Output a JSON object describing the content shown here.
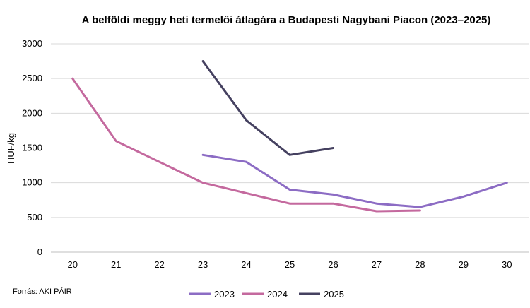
{
  "chart_data": {
    "type": "line",
    "title": "A belföldi meggy heti termelői átlagára a Budapesti Nagybani Piacon (2023–2025)",
    "xlabel": "",
    "ylabel": "HUF/kg",
    "x": [
      20,
      21,
      22,
      23,
      24,
      25,
      26,
      27,
      28,
      29,
      30
    ],
    "ylim": [
      0,
      3000
    ],
    "yticks": [
      0,
      500,
      1000,
      1500,
      2000,
      2500,
      3000
    ],
    "grid": true,
    "legend_position": "bottom",
    "series": [
      {
        "name": "2023",
        "color": "#8c6cc4",
        "points": [
          [
            23,
            1400
          ],
          [
            24,
            1300
          ],
          [
            25,
            900
          ],
          [
            26,
            830
          ],
          [
            27,
            700
          ],
          [
            28,
            650
          ],
          [
            29,
            800
          ],
          [
            30,
            1000
          ]
        ]
      },
      {
        "name": "2024",
        "color": "#c4699e",
        "points": [
          [
            20,
            2500
          ],
          [
            21,
            1600
          ],
          [
            22,
            1300
          ],
          [
            23,
            1000
          ],
          [
            24,
            850
          ],
          [
            25,
            700
          ],
          [
            26,
            700
          ],
          [
            27,
            590
          ],
          [
            28,
            600
          ]
        ]
      },
      {
        "name": "2025",
        "color": "#454160",
        "points": [
          [
            23,
            2750
          ],
          [
            24,
            1900
          ],
          [
            25,
            1400
          ],
          [
            26,
            1500
          ]
        ]
      }
    ],
    "source": "Forrás: AKI PÁIR"
  }
}
